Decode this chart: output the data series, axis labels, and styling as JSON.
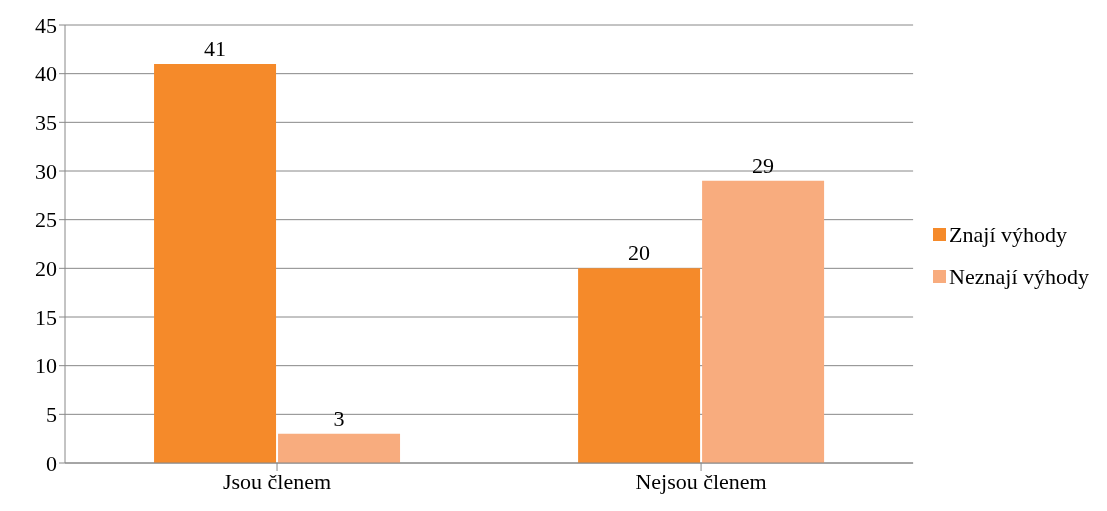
{
  "chart_data": {
    "type": "bar",
    "categories": [
      "Jsou členem",
      "Nejsou členem"
    ],
    "series": [
      {
        "name": "Znají výhody",
        "color": "#f58a2a",
        "values": [
          41,
          20
        ]
      },
      {
        "name": "Neznají výhody",
        "color": "#f8ac7e",
        "values": [
          3,
          29
        ]
      }
    ],
    "ylim": [
      0,
      45
    ],
    "yticks": [
      0,
      5,
      10,
      15,
      20,
      25,
      30,
      35,
      40,
      45
    ],
    "grid": "y",
    "legend": "right",
    "data_labels": true
  }
}
